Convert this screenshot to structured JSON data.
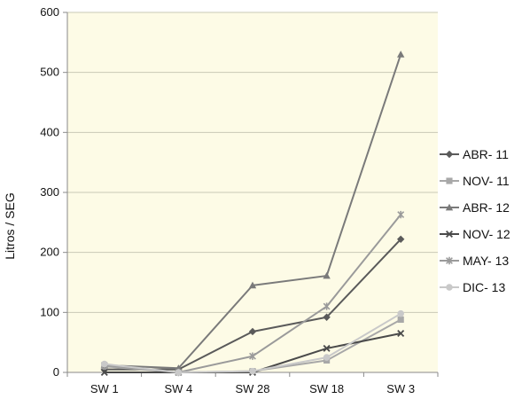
{
  "chart_data": {
    "type": "line",
    "categories": [
      "SW 1",
      "SW 4",
      "SW 28",
      "SW 18",
      "SW 3"
    ],
    "ylabel": "Litros / SEG",
    "xlabel": "",
    "ylim": [
      0,
      600
    ],
    "yticks": [
      0,
      100,
      200,
      300,
      400,
      500,
      600
    ],
    "grid": true,
    "legend_position": "right",
    "plot_background": "#fdfbe6",
    "series": [
      {
        "name": "ABR- 11",
        "color": "#5a5a5a",
        "marker": "diamond",
        "values": [
          5,
          5,
          68,
          92,
          222
        ]
      },
      {
        "name": "NOV- 11",
        "color": "#a8a8a8",
        "marker": "square",
        "values": [
          10,
          0,
          2,
          20,
          88
        ]
      },
      {
        "name": "ABR- 12",
        "color": "#7a7a7a",
        "marker": "triangle",
        "values": [
          12,
          7,
          145,
          161,
          530
        ]
      },
      {
        "name": "NOV- 12",
        "color": "#4a4a4a",
        "marker": "x",
        "values": [
          0,
          0,
          0,
          40,
          65
        ]
      },
      {
        "name": "MAY- 13",
        "color": "#9a9a9a",
        "marker": "star",
        "values": [
          12,
          0,
          27,
          110,
          263
        ]
      },
      {
        "name": "DIC- 13",
        "color": "#c9c9c9",
        "marker": "circle",
        "values": [
          14,
          0,
          2,
          25,
          98
        ]
      }
    ]
  }
}
